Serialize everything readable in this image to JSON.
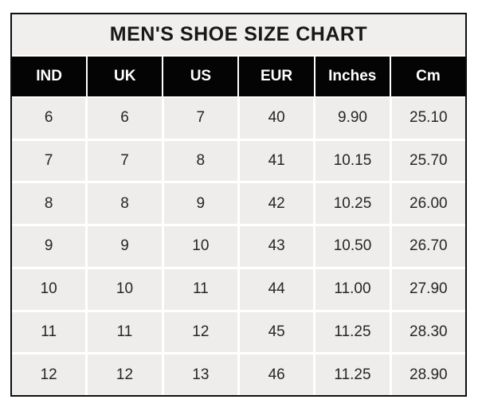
{
  "chart_data": {
    "type": "table",
    "title": "MEN'S SHOE SIZE CHART",
    "columns": [
      "IND",
      "UK",
      "US",
      "EUR",
      "Inches",
      "Cm"
    ],
    "rows": [
      [
        "6",
        "6",
        "7",
        "40",
        "9.90",
        "25.10"
      ],
      [
        "7",
        "7",
        "8",
        "41",
        "10.15",
        "25.70"
      ],
      [
        "8",
        "8",
        "9",
        "42",
        "10.25",
        "26.00"
      ],
      [
        "9",
        "9",
        "10",
        "43",
        "10.50",
        "26.70"
      ],
      [
        "10",
        "10",
        "11",
        "44",
        "11.00",
        "27.90"
      ],
      [
        "11",
        "11",
        "12",
        "45",
        "11.25",
        "28.30"
      ],
      [
        "12",
        "12",
        "13",
        "46",
        "11.25",
        "28.90"
      ]
    ],
    "layout": {
      "legend": "none",
      "grid": "white-gridlines-between-cells"
    },
    "colors": {
      "border": "#0e0e0e",
      "title_bg": "#f0efee",
      "title_text": "#181818",
      "header_bg": "#040404",
      "header_text": "#ffffff",
      "cell_bg": "#eeedec",
      "cell_text": "#262626",
      "gridline": "#ffffff",
      "page_bg": "#ffffff"
    }
  }
}
